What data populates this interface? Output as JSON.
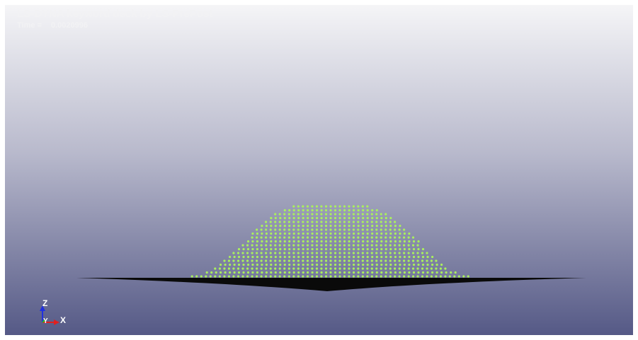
{
  "header": {
    "title": "LS-DYNA keyword deck by LS-PrePost",
    "time_label": "Time =",
    "time_value": "0.0020996"
  },
  "triad": {
    "z": "Z",
    "y": "Y",
    "x": "X"
  }
}
